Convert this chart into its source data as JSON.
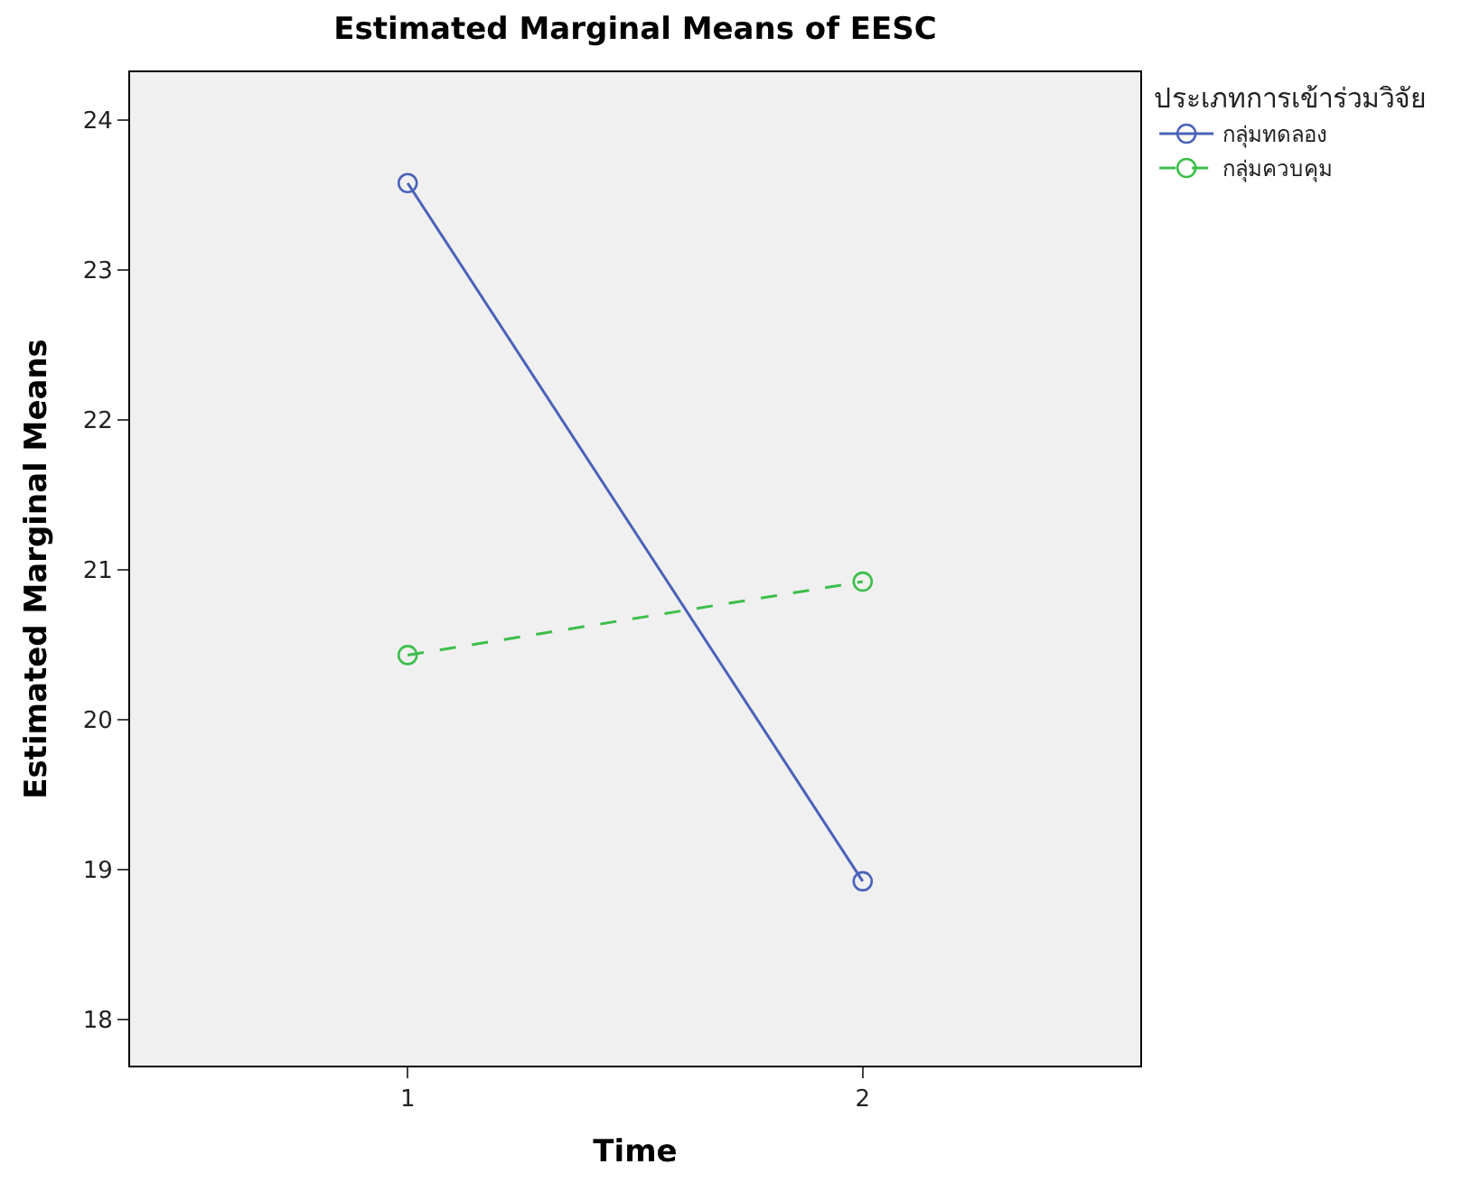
{
  "chart_data": {
    "type": "line",
    "title": "Estimated Marginal Means of EESC",
    "xlabel": "Time",
    "ylabel": "Estimated Marginal Means",
    "legend_title": "ประเภทการเข้าร่วมวิจัย",
    "x": [
      1,
      2
    ],
    "xlim": [
      0.39,
      2.61
    ],
    "xticks": [
      1,
      2
    ],
    "ylim": [
      17.69,
      24.32
    ],
    "yticks": [
      18,
      19,
      20,
      21,
      22,
      23,
      24
    ],
    "series": [
      {
        "name": "กลุ่มทดลอง",
        "color": "#4a62b8",
        "values": [
          23.58,
          18.92
        ],
        "line_style": "solid"
      },
      {
        "name": "กลุ่มควบคุม",
        "color": "#3cbe4a",
        "values": [
          20.43,
          20.92
        ],
        "line_style": "dashed"
      }
    ],
    "marker": "circle",
    "grid": false,
    "legend": "top right"
  }
}
